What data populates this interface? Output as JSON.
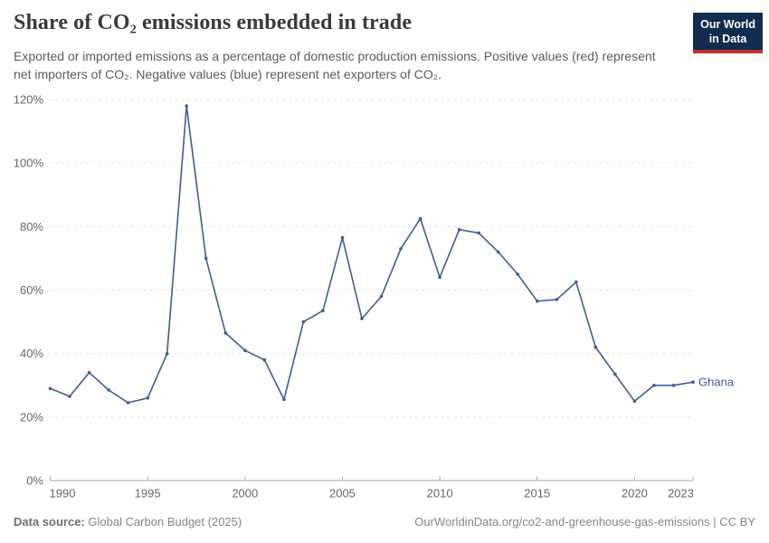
{
  "header": {
    "title": "Share of CO₂ emissions embedded in trade",
    "subtitle": "Exported or imported emissions as a percentage of domestic production emissions. Positive values (red) represent net importers of CO₂. Negative values (blue) represent net exporters of CO₂.",
    "logo": {
      "line1": "Our World",
      "line2": "in Data"
    }
  },
  "footer": {
    "datasource_label": "Data source:",
    "datasource_value": "Global Carbon Budget (2025)",
    "credit": "OurWorldinData.org/co2-and-greenhouse-gas-emissions | CC BY"
  },
  "colors": {
    "line": "#405c96",
    "gridline": "#e2e2e2",
    "axis": "#a9a9a9",
    "tick_label": "#666666",
    "logo_navy": "#122b4e",
    "logo_red": "#c0302c"
  },
  "chart_data": {
    "type": "line",
    "title": "Share of CO₂ emissions embedded in trade",
    "xlabel": "",
    "ylabel": "",
    "xlim": [
      1990,
      2023
    ],
    "ylim": [
      0,
      120
    ],
    "grid": "horizontal-dashed",
    "legend_position": "end-of-line",
    "x_ticks": [
      1990,
      1995,
      2000,
      2005,
      2010,
      2015,
      2020,
      2023
    ],
    "y_ticks": [
      0,
      20,
      40,
      60,
      80,
      100,
      120
    ],
    "y_tick_suffix": "%",
    "end_label": "Ghana",
    "series": [
      {
        "name": "Ghana",
        "color": "#405c96",
        "x": [
          1990,
          1991,
          1992,
          1993,
          1994,
          1995,
          1996,
          1997,
          1998,
          1999,
          2000,
          2001,
          2002,
          2003,
          2004,
          2005,
          2006,
          2007,
          2008,
          2009,
          2010,
          2011,
          2012,
          2013,
          2014,
          2015,
          2016,
          2017,
          2018,
          2019,
          2020,
          2021,
          2022,
          2023
        ],
        "values": [
          29,
          26.5,
          34,
          28.5,
          24.5,
          26,
          40,
          118,
          70,
          46.5,
          41,
          38,
          25.5,
          50,
          53.5,
          76.5,
          51,
          58,
          73,
          82.5,
          64,
          79,
          78,
          72,
          65,
          56.5,
          57,
          62.5,
          42,
          33.5,
          25,
          30,
          30,
          31
        ]
      }
    ]
  }
}
